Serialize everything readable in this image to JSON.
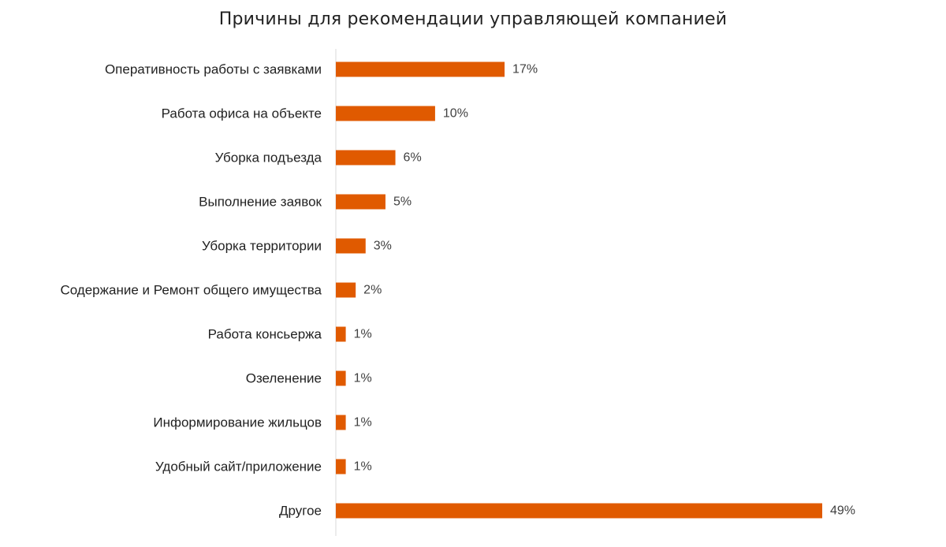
{
  "chart_data": {
    "type": "bar",
    "orientation": "horizontal",
    "title": "Причины для рекомендации управляющей компанией",
    "xlabel": "",
    "ylabel": "",
    "unit": "%",
    "xlim": [
      0,
      49
    ],
    "grid": false,
    "legend": "none",
    "categories": [
      "Оперативность работы с заявками",
      "Работа офиса на объекте",
      "Уборка подъезда",
      "Выполнение заявок",
      "Уборка территории",
      "Содержание и Ремонт общего имущества",
      "Работа консьержа",
      "Озеленение",
      "Информирование жильцов",
      "Удобный сайт/приложение",
      "Другое"
    ],
    "values": [
      17,
      10,
      6,
      5,
      3,
      2,
      1,
      1,
      1,
      1,
      49
    ],
    "value_labels": [
      "17%",
      "10%",
      "6%",
      "5%",
      "3%",
      "2%",
      "1%",
      "1%",
      "1%",
      "1%",
      "49%"
    ],
    "colors": {
      "bar": "#E05A00",
      "axis": "#D9D9D9",
      "text": "#222222"
    }
  }
}
